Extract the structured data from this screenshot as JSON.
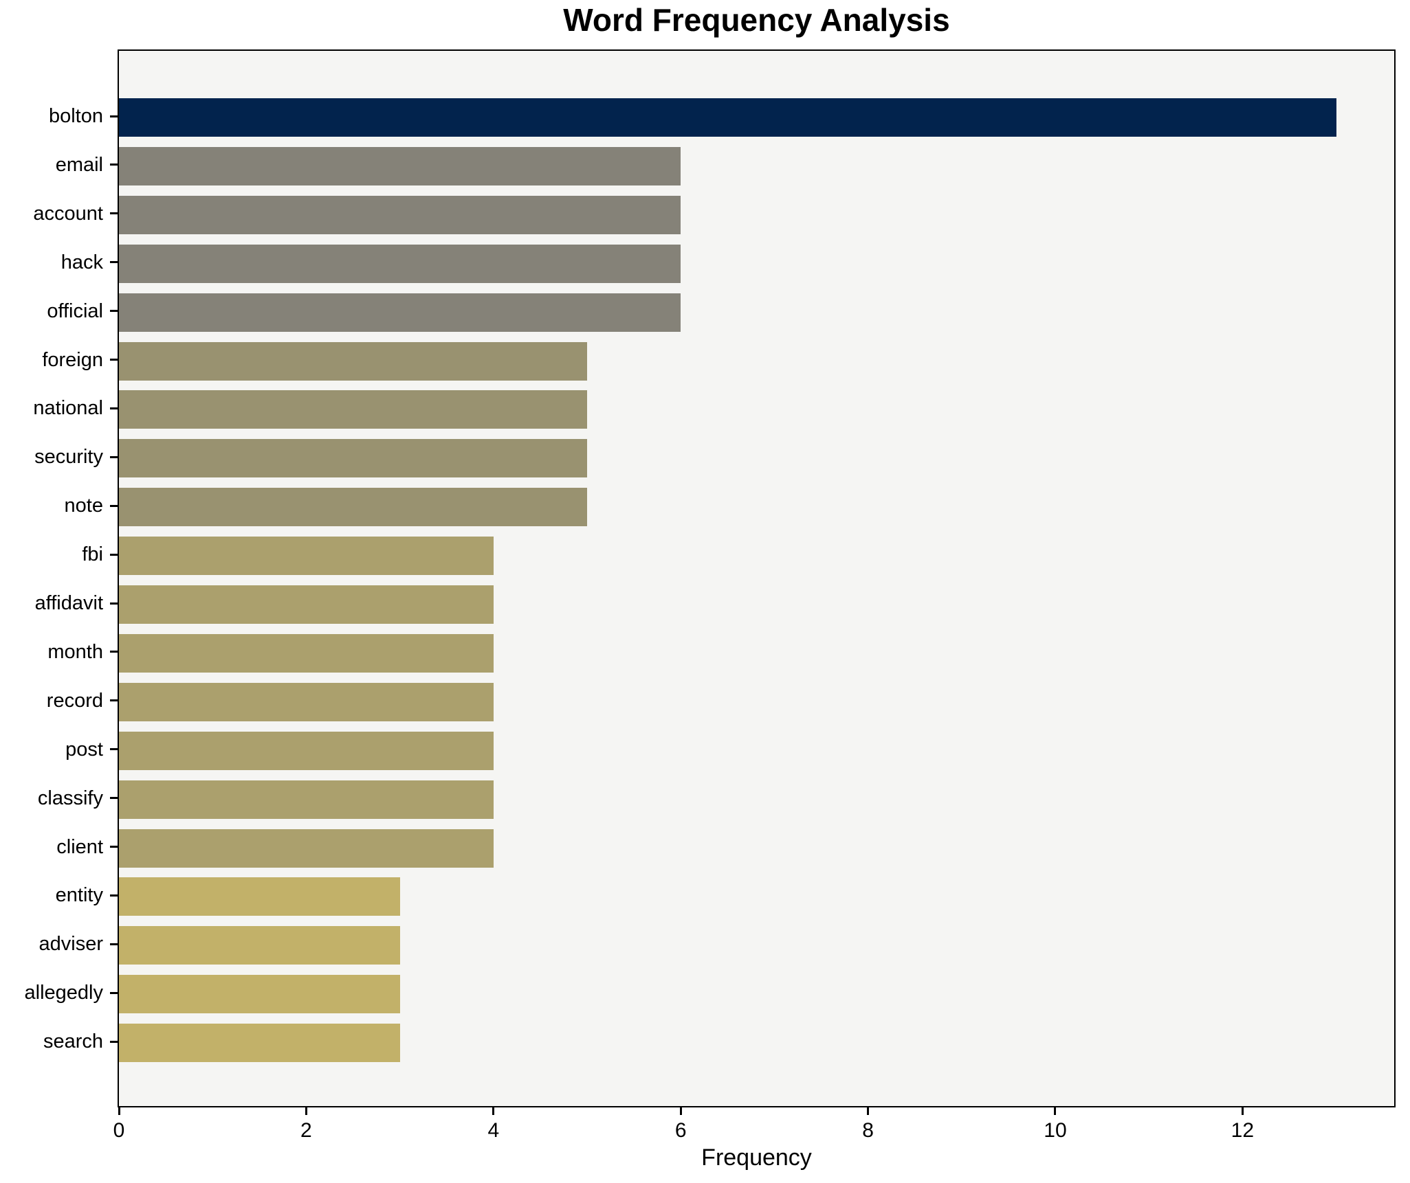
{
  "chart_data": {
    "type": "bar",
    "orientation": "horizontal",
    "title": "Word Frequency Analysis",
    "xlabel": "Frequency",
    "ylabel": "",
    "categories": [
      "bolton",
      "email",
      "account",
      "hack",
      "official",
      "foreign",
      "national",
      "security",
      "note",
      "fbi",
      "affidavit",
      "month",
      "record",
      "post",
      "classify",
      "client",
      "entity",
      "adviser",
      "allegedly",
      "search"
    ],
    "values": [
      13,
      6,
      6,
      6,
      6,
      5,
      5,
      5,
      5,
      4,
      4,
      4,
      4,
      4,
      4,
      4,
      3,
      3,
      3,
      3
    ],
    "bar_colors": [
      "#02234d",
      "#858278",
      "#858278",
      "#858278",
      "#858278",
      "#999270",
      "#999270",
      "#999270",
      "#999270",
      "#aba06d",
      "#aba06d",
      "#aba06d",
      "#aba06d",
      "#aba06d",
      "#aba06d",
      "#aba06d",
      "#c2b169",
      "#c2b169",
      "#c2b169",
      "#c2b169"
    ],
    "xticks": [
      0,
      2,
      4,
      6,
      8,
      10,
      12
    ],
    "xlim": [
      0,
      13.62
    ],
    "grid": false,
    "legend": "none",
    "plot_bg": "#f5f5f3",
    "figure_bg": "#ffffff",
    "spine_color": "#000000",
    "text_color": "#000000"
  }
}
